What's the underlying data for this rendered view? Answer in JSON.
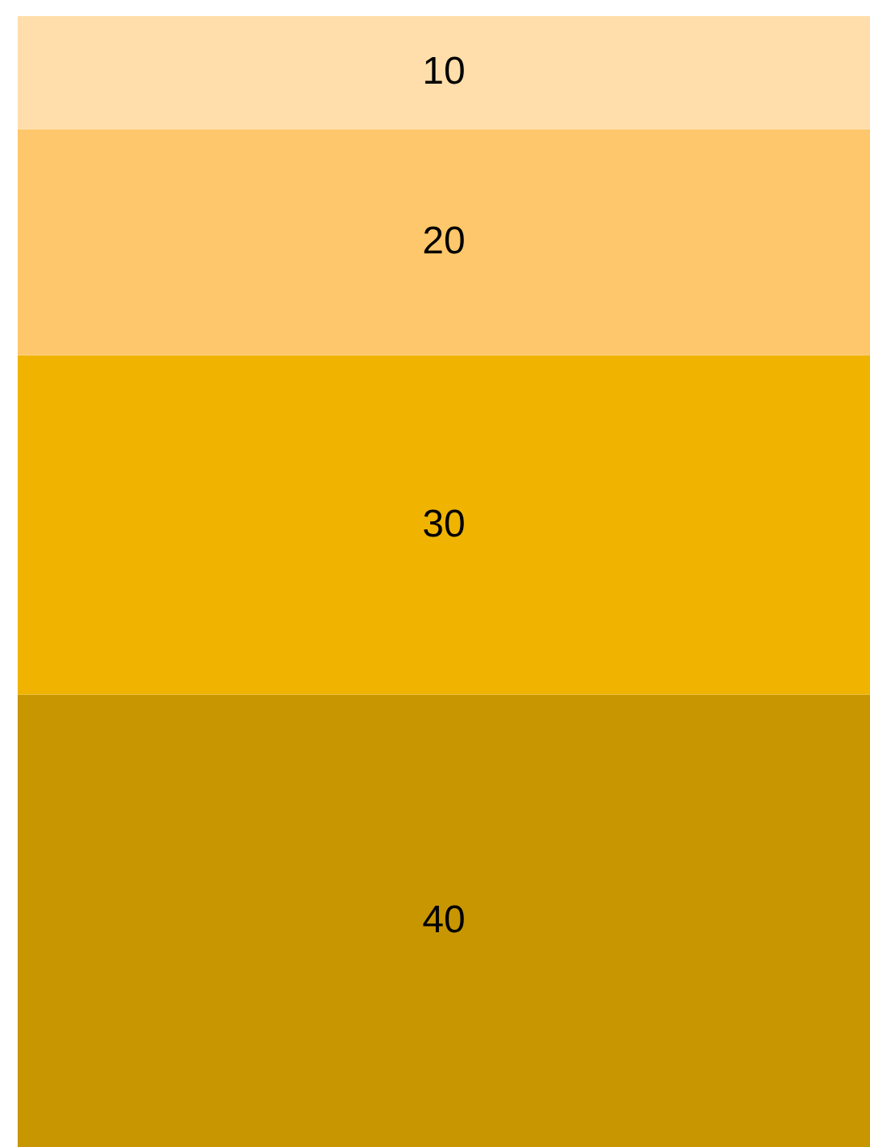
{
  "chart_data": {
    "type": "bar",
    "stacked": true,
    "categories": [
      null
    ],
    "ylim": [
      0,
      100
    ],
    "tick_labels": false,
    "grid": false,
    "data_labels": true,
    "series": [
      {
        "color": "#c89600",
        "values": [
          40
        ]
      },
      {
        "color": "#f0b400",
        "values": [
          30
        ]
      },
      {
        "color": "#ffc76b",
        "values": [
          20
        ]
      },
      {
        "color": "#ffdeab",
        "values": [
          10
        ]
      }
    ]
  }
}
